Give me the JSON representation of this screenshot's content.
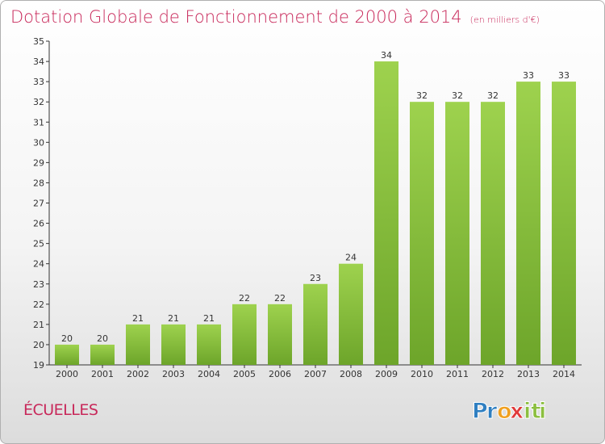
{
  "chart_data": {
    "type": "bar",
    "title": "Dotation Globale de Fonctionnement de 2000 à 2014",
    "subtitle": "(en milliers d'€)",
    "xlabel": "",
    "ylabel": "",
    "categories": [
      "2000",
      "2001",
      "2002",
      "2003",
      "2004",
      "2005",
      "2006",
      "2007",
      "2008",
      "2009",
      "2010",
      "2011",
      "2012",
      "2013",
      "2014"
    ],
    "values": [
      20,
      20,
      21,
      21,
      21,
      22,
      22,
      23,
      24,
      34,
      32,
      32,
      32,
      33,
      33
    ],
    "ylim": [
      19,
      35
    ],
    "yticks": [
      19,
      20,
      21,
      22,
      23,
      24,
      25,
      26,
      27,
      28,
      29,
      30,
      31,
      32,
      33,
      34,
      35
    ],
    "grid": false,
    "data_labels": true,
    "bar_color_light": "#9ed24e",
    "bar_color_dark": "#6da52a"
  },
  "commune": "ÉCUELLES",
  "logo": {
    "text": "Proxiti",
    "letters": [
      "P",
      "r",
      "o",
      "x",
      "i",
      "t",
      "i"
    ],
    "colors": [
      "#2f7fc1",
      "#2f7fc1",
      "#f0a020",
      "#e03a3a",
      "#8cbf3f",
      "#8cbf3f",
      "#8cbf3f"
    ]
  },
  "colors": {
    "title": "#c8285a",
    "axis": "#333333"
  }
}
